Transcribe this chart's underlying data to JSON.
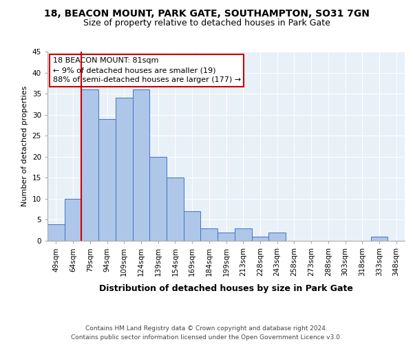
{
  "title1": "18, BEACON MOUNT, PARK GATE, SOUTHAMPTON, SO31 7GN",
  "title2": "Size of property relative to detached houses in Park Gate",
  "xlabel": "Distribution of detached houses by size in Park Gate",
  "ylabel": "Number of detached properties",
  "categories": [
    "49sqm",
    "64sqm",
    "79sqm",
    "94sqm",
    "109sqm",
    "124sqm",
    "139sqm",
    "154sqm",
    "169sqm",
    "184sqm",
    "199sqm",
    "213sqm",
    "228sqm",
    "243sqm",
    "258sqm",
    "273sqm",
    "288sqm",
    "303sqm",
    "318sqm",
    "333sqm",
    "348sqm"
  ],
  "values": [
    4,
    10,
    36,
    29,
    34,
    36,
    20,
    15,
    7,
    3,
    2,
    3,
    1,
    2,
    0,
    0,
    0,
    0,
    0,
    1,
    0
  ],
  "bar_color": "#aec6e8",
  "bar_edge_color": "#4472c4",
  "vline_x_index": 2,
  "vline_color": "#cc0000",
  "annotation_text": "18 BEACON MOUNT: 81sqm\n← 9% of detached houses are smaller (19)\n88% of semi-detached houses are larger (177) →",
  "annotation_box_color": "#ffffff",
  "annotation_box_edge": "#cc0000",
  "ylim": [
    0,
    45
  ],
  "yticks": [
    0,
    5,
    10,
    15,
    20,
    25,
    30,
    35,
    40,
    45
  ],
  "bg_color": "#e8f0f8",
  "footer1": "Contains HM Land Registry data © Crown copyright and database right 2024.",
  "footer2": "Contains public sector information licensed under the Open Government Licence v3.0.",
  "title1_fontsize": 10,
  "title2_fontsize": 9,
  "xlabel_fontsize": 9,
  "ylabel_fontsize": 8,
  "tick_fontsize": 7.5,
  "annotation_fontsize": 8,
  "footer_fontsize": 6.5
}
